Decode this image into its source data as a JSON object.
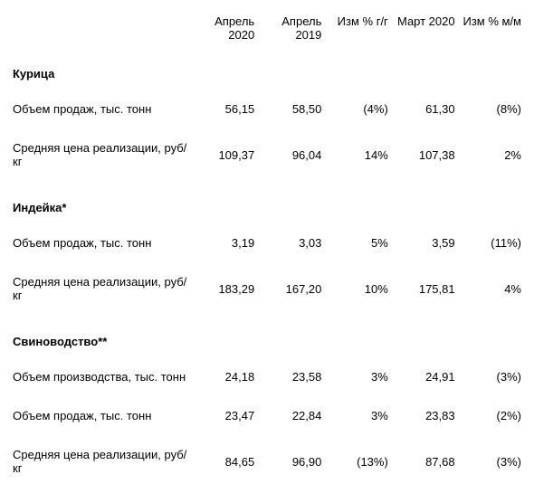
{
  "columns": [
    "",
    "Апрель 2020",
    "Апрель 2019",
    "Изм % г/г",
    "Март 2020",
    "Изм % м/м"
  ],
  "sections": [
    {
      "title": "Курица",
      "rows": [
        {
          "label": "Объем продаж, тыс. тонн",
          "apr2020": "56,15",
          "apr2019": "58,50",
          "yoy": "(4%)",
          "mar2020": "61,30",
          "mom": "(8%)"
        },
        {
          "label": "Средняя цена реализации, руб/кг",
          "apr2020": "109,37",
          "apr2019": "96,04",
          "yoy": "14%",
          "mar2020": "107,38",
          "mom": "2%"
        }
      ]
    },
    {
      "title": "Индейка*",
      "rows": [
        {
          "label": "Объем продаж, тыс. тонн",
          "apr2020": "3,19",
          "apr2019": "3,03",
          "yoy": "5%",
          "mar2020": "3,59",
          "mom": "(11%)"
        },
        {
          "label": "Средняя цена реализации, руб/кг",
          "apr2020": "183,29",
          "apr2019": "167,20",
          "yoy": "10%",
          "mar2020": "175,81",
          "mom": "4%"
        }
      ]
    },
    {
      "title": "Свиноводство**",
      "rows": [
        {
          "label": "Объем производства, тыс. тонн",
          "apr2020": "24,18",
          "apr2019": "23,58",
          "yoy": "3%",
          "mar2020": "24,91",
          "mom": "(3%)"
        },
        {
          "label": "Объем продаж, тыс. тонн",
          "apr2020": "23,47",
          "apr2019": "22,84",
          "yoy": "3%",
          "mar2020": "23,83",
          "mom": "(2%)"
        },
        {
          "label": "Средняя цена реализации, руб/кг",
          "apr2020": "84,65",
          "apr2019": "96,90",
          "yoy": "(13%)",
          "mar2020": "87,68",
          "mom": "(3%)"
        }
      ]
    }
  ]
}
